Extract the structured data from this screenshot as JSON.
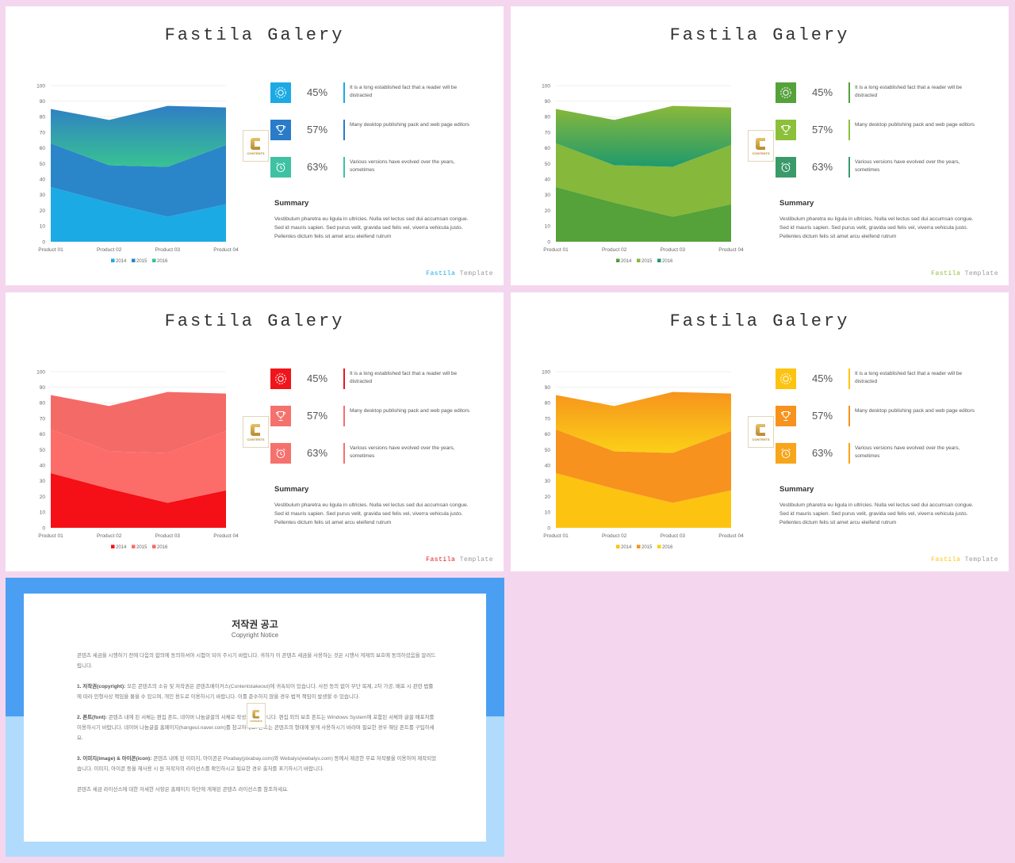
{
  "slides": [
    {
      "title": "Fastila Galery",
      "colors": {
        "c2014": "#1caae4",
        "c2015": "#2a86c9",
        "c2016_top": "#2f7fc5",
        "c2016_bottom": "#38c292",
        "icons": [
          "#1caae4",
          "#2a7cc8",
          "#3fc1a3"
        ],
        "bars": [
          "#1caae4",
          "#2a7cc8",
          "#3fc1a3"
        ],
        "footer": "#1caae4"
      },
      "stats": [
        {
          "pct": "45%",
          "text": "It is a long established fact that a reader will be distracted",
          "icon": "gear-sun-icon"
        },
        {
          "pct": "57%",
          "text": "Many desktop publishing pack and web page editors",
          "icon": "trophy-icon"
        },
        {
          "pct": "63%",
          "text": "Various versions have evolved over the years, sometimes",
          "icon": "alarm-clock-icon"
        }
      ],
      "summary_title": "Summary",
      "summary_text": "Vestibulum pharetra eu ligula in ultricies. Nulla vel lectus sed dui accumsan congue. Sed id mauris sapien. Sed purus velit, gravida sed felis vel, viverra vehicula justo. Pellentes dictum felis sit amet arcu eleifend rutrum",
      "footer_brand": "Fastila",
      "footer_template": "Template",
      "logo_letters": "CONTENTS"
    },
    {
      "title": "Fastila Galery",
      "colors": {
        "c2014": "#55a13a",
        "c2015": "#86b83b",
        "c2016_top": "#8ab93a",
        "c2016_bottom": "#1f9a6d",
        "icons": [
          "#55a13a",
          "#8cc03b",
          "#3a9a6a"
        ],
        "bars": [
          "#55a13a",
          "#8cc03b",
          "#3a9a6a"
        ],
        "footer": "#8cc03b"
      },
      "stats": [
        {
          "pct": "45%",
          "text": "It is a long established fact that a reader will be distracted",
          "icon": "gear-sun-icon"
        },
        {
          "pct": "57%",
          "text": "Many desktop publishing pack and web page editors",
          "icon": "trophy-icon"
        },
        {
          "pct": "63%",
          "text": "Various versions have evolved over the years, sometimes",
          "icon": "alarm-clock-icon"
        }
      ],
      "summary_title": "Summary",
      "summary_text": "Vestibulum pharetra eu ligula in ultricies. Nulla vel lectus sed dui accumsan congue. Sed id mauris sapien. Sed purus velit, gravida sed felis vel, viverra vehicula justo. Pellentes dictum felis sit amet arcu eleifend rutrum",
      "footer_brand": "Fastila",
      "footer_template": "Template",
      "logo_letters": "CONTENTS"
    },
    {
      "title": "Fastila Galery",
      "colors": {
        "c2014": "#f50f16",
        "c2015": "#fc6d6a",
        "c2016_top": "#f46a66",
        "c2016_bottom": "#f46a66",
        "icons": [
          "#f0141b",
          "#f5716d",
          "#f5716d"
        ],
        "bars": [
          "#e8161c",
          "#f5716d",
          "#f5716d"
        ],
        "footer": "#e8161c"
      },
      "stats": [
        {
          "pct": "45%",
          "text": "It is a long established fact that a reader will be distracted",
          "icon": "gear-sun-icon"
        },
        {
          "pct": "57%",
          "text": "Many desktop publishing pack and web page editors",
          "icon": "trophy-icon"
        },
        {
          "pct": "63%",
          "text": "Various versions have evolved over the years, sometimes",
          "icon": "alarm-clock-icon"
        }
      ],
      "summary_title": "Summary",
      "summary_text": "Vestibulum pharetra eu ligula in ultricies. Nulla vel lectus sed dui accumsan congue. Sed id mauris sapien. Sed purus velit, gravida sed felis vel, viverra vehicula justo. Pellentes dictum felis sit amet arcu eleifend rutrum",
      "footer_brand": "Fastila",
      "footer_template": "Template",
      "logo_letters": "CONTENTS"
    },
    {
      "title": "Fastila Galery",
      "colors": {
        "c2014": "#fdc311",
        "c2015": "#f7921e",
        "c2016_top": "#f7941d",
        "c2016_bottom": "#fbd016",
        "icons": [
          "#fdc311",
          "#f7921e",
          "#f7a51a"
        ],
        "bars": [
          "#fdc311",
          "#f7921e",
          "#f7a51a"
        ],
        "footer": "#fdc311"
      },
      "stats": [
        {
          "pct": "45%",
          "text": "It is a long established fact that a reader will be distracted",
          "icon": "gear-sun-icon"
        },
        {
          "pct": "57%",
          "text": "Many desktop publishing pack and web page editors",
          "icon": "trophy-icon"
        },
        {
          "pct": "63%",
          "text": "Various versions have evolved over the years, sometimes",
          "icon": "alarm-clock-icon"
        }
      ],
      "summary_title": "Summary",
      "summary_text": "Vestibulum pharetra eu ligula in ultricies. Nulla vel lectus sed dui accumsan congue. Sed id mauris sapien. Sed purus velit, gravida sed felis vel, viverra vehicula justo. Pellentes dictum felis sit amet arcu eleifend rutrum",
      "footer_brand": "Fastila",
      "footer_template": "Template",
      "logo_letters": "CONTENTS"
    }
  ],
  "chart_data": [
    {
      "type": "area",
      "stacked": true,
      "categories": [
        "Product 01",
        "Product 02",
        "Product 03",
        "Product 04"
      ],
      "series": [
        {
          "name": "2014",
          "values": [
            35,
            25,
            16,
            24
          ]
        },
        {
          "name": "2015",
          "values": [
            28,
            24,
            32,
            38
          ]
        },
        {
          "name": "2016",
          "values": [
            22,
            29,
            39,
            24
          ]
        }
      ],
      "ylim": [
        0,
        100
      ],
      "yticks": [
        0,
        10,
        20,
        30,
        40,
        50,
        60,
        70,
        80,
        90,
        100
      ],
      "grid": true,
      "legend": "bottom"
    },
    {
      "type": "area",
      "stacked": true,
      "categories": [
        "Product 01",
        "Product 02",
        "Product 03",
        "Product 04"
      ],
      "series": [
        {
          "name": "2014",
          "values": [
            35,
            25,
            16,
            24
          ]
        },
        {
          "name": "2015",
          "values": [
            28,
            24,
            32,
            38
          ]
        },
        {
          "name": "2016",
          "values": [
            22,
            29,
            39,
            24
          ]
        }
      ],
      "ylim": [
        0,
        100
      ],
      "yticks": [
        0,
        10,
        20,
        30,
        40,
        50,
        60,
        70,
        80,
        90,
        100
      ],
      "grid": true,
      "legend": "bottom"
    },
    {
      "type": "area",
      "stacked": true,
      "categories": [
        "Product 01",
        "Product 02",
        "Product 03",
        "Product 04"
      ],
      "series": [
        {
          "name": "2014",
          "values": [
            35,
            25,
            16,
            24
          ]
        },
        {
          "name": "2015",
          "values": [
            28,
            24,
            32,
            38
          ]
        },
        {
          "name": "2016",
          "values": [
            22,
            29,
            39,
            24
          ]
        }
      ],
      "ylim": [
        0,
        100
      ],
      "yticks": [
        0,
        10,
        20,
        30,
        40,
        50,
        60,
        70,
        80,
        90,
        100
      ],
      "grid": true,
      "legend": "bottom"
    },
    {
      "type": "area",
      "stacked": true,
      "categories": [
        "Product 01",
        "Product 02",
        "Product 03",
        "Product 04"
      ],
      "series": [
        {
          "name": "2014",
          "values": [
            35,
            25,
            16,
            24
          ]
        },
        {
          "name": "2015",
          "values": [
            28,
            24,
            32,
            38
          ]
        },
        {
          "name": "2016",
          "values": [
            22,
            29,
            39,
            24
          ]
        }
      ],
      "ylim": [
        0,
        100
      ],
      "yticks": [
        0,
        10,
        20,
        30,
        40,
        50,
        60,
        70,
        80,
        90,
        100
      ],
      "grid": true,
      "legend": "bottom"
    }
  ],
  "copyright": {
    "title": "저작권 공고",
    "subtitle": "Copyright Notice",
    "colors": {
      "top": "#4b9ff2",
      "bottom": "#b0dbfc"
    },
    "intro": "콘텐츠 세금을 시행하기 전에 다음의 합의에 동의하셔야 시험이 되어 주시기 바랍니다. 귀하가 이 콘텐츠 세금을 사용하는 것은 시행사 게재의 보호에 동의하셨음을 알려드립니다.",
    "p1_label": "1. 저작권(copyright):",
    "p1": "모든 콘텐츠의 소유 및 저작권은 콘텐츠메이커스(Contentstakeout)에 귀속되어 있습니다. 사전 동의 없이 무단 복제, 2차 가공, 배포 시 관련 법률에 따라 민형사상 책임을 물을 수 있으며, 개인 용도로 이용하시기 바랍니다. 이를 준수하지 않을 경우 법적 책임이 발생할 수 있습니다.",
    "p2_label": "2. 폰트(font):",
    "p2": "콘텐츠 내에 된 서체는 편집 폰트, 네이버 나눔글꼴의 서체로 작성되어 있습니다. 편집 외의 보조 폰트는 Windows System에 포함된 서체와 글꼴 배포처를 이용하시기 바랍니다. 네이버 나눔글꼴 홈페이지(hangeul.naver.com)를 참고하세요. 폰트는 콘텐츠의 형태에 맞게 사용하시기 바라며 필요한 경우 해당 폰트를 구입하세요.",
    "p3_label": "3. 이미지(image) & 아이콘(icon):",
    "p3": "콘텐츠 내에 된 이미지, 아이콘은 Pixabay(pixabay.com)와 Webalys(webalys.com) 등에서 제공한 무료 저작물을 이용하여 제작되었습니다. 이미지, 아이콘 등을 재사용 시 원 저작자의 라이선스를 확인하시고 필요한 경우 출처를 표기하시기 바랍니다.",
    "outro": "콘텐츠 세금 라이선스에 대한 자세한 사항은 홈페이지 하단에 게재된 콘텐츠 라이선스를 참조하세요.",
    "logo_letters": "CONTENTS"
  }
}
